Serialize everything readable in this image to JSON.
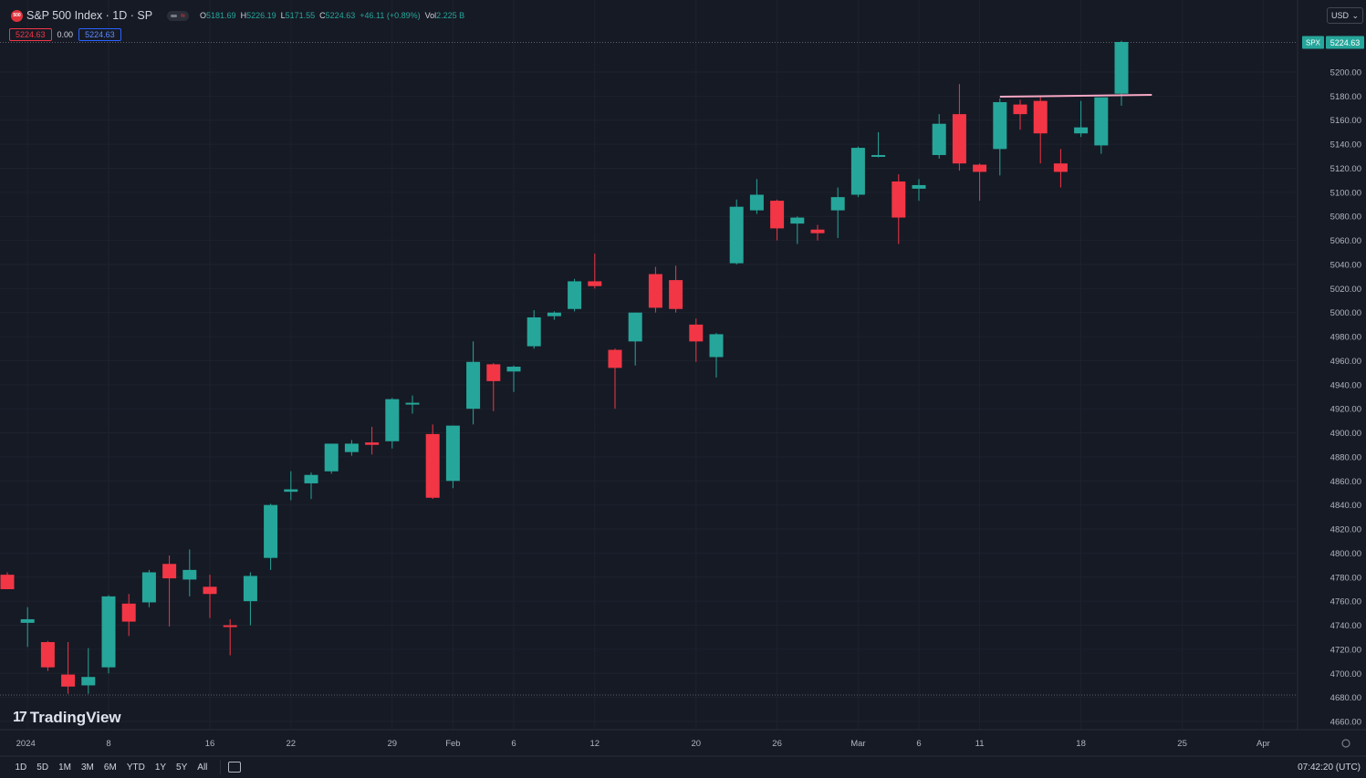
{
  "header": {
    "logo_text": "500",
    "title": "S&P 500 Index · 1D · SP",
    "ohlc": {
      "o_label": "O",
      "o_value": "5181.69",
      "h_label": "H",
      "h_value": "5226.19",
      "l_label": "L",
      "l_value": "5171.55",
      "c_label": "C",
      "c_value": "5224.63",
      "change": "+46.11 (+0.89%)",
      "vol_label": "Vol",
      "vol_value": "2.225 B"
    }
  },
  "badges": {
    "sell": "5224.63",
    "spread": "0.00",
    "buy": "5224.63"
  },
  "currency_selector": {
    "value": "USD"
  },
  "price_label": {
    "symbol": "SPX",
    "value": "5224.63"
  },
  "watermark": {
    "text": "TradingView",
    "mark": "17"
  },
  "timeframes": [
    "1D",
    "5D",
    "1M",
    "3M",
    "6M",
    "YTD",
    "1Y",
    "5Y",
    "All"
  ],
  "clock": "07:42:20 (UTC)",
  "colors": {
    "up": "#26a69a",
    "down": "#f23645",
    "background": "#161a25",
    "line": "#f7a8c4"
  },
  "chart_data": {
    "type": "candlestick",
    "title": "S&P 500 Index · 1D · SP",
    "yticks": [
      4660,
      4680,
      4700,
      4720,
      4740,
      4760,
      4780,
      4800,
      4820,
      4840,
      4860,
      4880,
      4900,
      4920,
      4940,
      4960,
      4980,
      5000,
      5020,
      5040,
      5060,
      5080,
      5100,
      5120,
      5140,
      5160,
      5180,
      5200
    ],
    "ylim": [
      4652,
      5228
    ],
    "xtick_labels": [
      {
        "label": "2024",
        "bar": 1
      },
      {
        "label": "8",
        "bar": 5
      },
      {
        "label": "16",
        "bar": 10
      },
      {
        "label": "22",
        "bar": 14
      },
      {
        "label": "29",
        "bar": 19
      },
      {
        "label": "Feb",
        "bar": 22
      },
      {
        "label": "6",
        "bar": 25
      },
      {
        "label": "12",
        "bar": 29
      },
      {
        "label": "20",
        "bar": 34
      },
      {
        "label": "26",
        "bar": 38
      },
      {
        "label": "Mar",
        "bar": 42
      },
      {
        "label": "6",
        "bar": 45
      },
      {
        "label": "11",
        "bar": 48
      },
      {
        "label": "18",
        "bar": 53
      },
      {
        "label": "25",
        "bar": 58
      },
      {
        "label": "Apr",
        "bar": 62
      }
    ],
    "candles": [
      {
        "o": 4782,
        "h": 4784,
        "l": 4770,
        "c": 4770
      },
      {
        "o": 4742,
        "h": 4755,
        "l": 4722,
        "c": 4745
      },
      {
        "o": 4726,
        "h": 4727,
        "l": 4702,
        "c": 4705
      },
      {
        "o": 4699,
        "h": 4726,
        "l": 4683,
        "c": 4689
      },
      {
        "o": 4690,
        "h": 4721,
        "l": 4683,
        "c": 4697
      },
      {
        "o": 4705,
        "h": 4765,
        "l": 4700,
        "c": 4764
      },
      {
        "o": 4758,
        "h": 4766,
        "l": 4731,
        "c": 4743
      },
      {
        "o": 4759,
        "h": 4786,
        "l": 4755,
        "c": 4784
      },
      {
        "o": 4791,
        "h": 4798,
        "l": 4739,
        "c": 4779
      },
      {
        "o": 4778,
        "h": 4803,
        "l": 4764,
        "c": 4786
      },
      {
        "o": 4772,
        "h": 4782,
        "l": 4746,
        "c": 4766
      },
      {
        "o": 4740,
        "h": 4745,
        "l": 4715,
        "c": 4739
      },
      {
        "o": 4760,
        "h": 4784,
        "l": 4740,
        "c": 4781
      },
      {
        "o": 4796,
        "h": 4841,
        "l": 4786,
        "c": 4840
      },
      {
        "o": 4851,
        "h": 4868,
        "l": 4844,
        "c": 4853
      },
      {
        "o": 4858,
        "h": 4867,
        "l": 4845,
        "c": 4865
      },
      {
        "o": 4868,
        "h": 4891,
        "l": 4866,
        "c": 4891
      },
      {
        "o": 4884,
        "h": 4894,
        "l": 4881,
        "c": 4891
      },
      {
        "o": 4892,
        "h": 4905,
        "l": 4882,
        "c": 4890
      },
      {
        "o": 4893,
        "h": 4929,
        "l": 4887,
        "c": 4928
      },
      {
        "o": 4925,
        "h": 4931,
        "l": 4916,
        "c": 4925
      },
      {
        "o": 4899,
        "h": 4907,
        "l": 4845,
        "c": 4846
      },
      {
        "o": 4860,
        "h": 4906,
        "l": 4854,
        "c": 4906
      },
      {
        "o": 4920,
        "h": 4976,
        "l": 4907,
        "c": 4959
      },
      {
        "o": 4957,
        "h": 4958,
        "l": 4918,
        "c": 4943
      },
      {
        "o": 4951,
        "h": 4956,
        "l": 4934,
        "c": 4955
      },
      {
        "o": 4972,
        "h": 5002,
        "l": 4970,
        "c": 4996
      },
      {
        "o": 4997,
        "h": 5001,
        "l": 4994,
        "c": 5000
      },
      {
        "o": 5003,
        "h": 5028,
        "l": 5001,
        "c": 5026
      },
      {
        "o": 5026,
        "h": 5049,
        "l": 5020,
        "c": 5022
      },
      {
        "o": 4969,
        "h": 4970,
        "l": 4920,
        "c": 4954
      },
      {
        "o": 4976,
        "h": 5000,
        "l": 4956,
        "c": 5000
      },
      {
        "o": 5032,
        "h": 5038,
        "l": 5000,
        "c": 5004
      },
      {
        "o": 5027,
        "h": 5039,
        "l": 5000,
        "c": 5003
      },
      {
        "o": 4990,
        "h": 4995,
        "l": 4959,
        "c": 4976
      },
      {
        "o": 4963,
        "h": 4983,
        "l": 4946,
        "c": 4982
      },
      {
        "o": 5041,
        "h": 5094,
        "l": 5040,
        "c": 5088
      },
      {
        "o": 5085,
        "h": 5111,
        "l": 5082,
        "c": 5098
      },
      {
        "o": 5093,
        "h": 5094,
        "l": 5060,
        "c": 5070
      },
      {
        "o": 5074,
        "h": 5080,
        "l": 5057,
        "c": 5079
      },
      {
        "o": 5069,
        "h": 5073,
        "l": 5060,
        "c": 5066
      },
      {
        "o": 5085,
        "h": 5104,
        "l": 5062,
        "c": 5096
      },
      {
        "o": 5098,
        "h": 5138,
        "l": 5096,
        "c": 5137
      },
      {
        "o": 5131,
        "h": 5150,
        "l": 5129,
        "c": 5131
      },
      {
        "o": 5109,
        "h": 5115,
        "l": 5057,
        "c": 5079
      },
      {
        "o": 5103,
        "h": 5111,
        "l": 5093,
        "c": 5106
      },
      {
        "o": 5131,
        "h": 5165,
        "l": 5128,
        "c": 5157
      },
      {
        "o": 5165,
        "h": 5190,
        "l": 5118,
        "c": 5124
      },
      {
        "o": 5123,
        "h": 5124,
        "l": 5093,
        "c": 5117
      },
      {
        "o": 5136,
        "h": 5178,
        "l": 5114,
        "c": 5175
      },
      {
        "o": 5173,
        "h": 5177,
        "l": 5152,
        "c": 5165
      },
      {
        "o": 5176,
        "h": 5179,
        "l": 5124,
        "c": 5149
      },
      {
        "o": 5124,
        "h": 5136,
        "l": 5104,
        "c": 5117
      },
      {
        "o": 5149,
        "h": 5176,
        "l": 5146,
        "c": 5154
      },
      {
        "o": 5139,
        "h": 5178,
        "l": 5132,
        "c": 5179
      },
      {
        "o": 5182,
        "h": 5226,
        "l": 5172,
        "c": 5225
      }
    ],
    "resistance_line": {
      "from_bar": 49,
      "to_bar": 56.5,
      "y_start": 5179.5,
      "y_end": 5181
    }
  }
}
